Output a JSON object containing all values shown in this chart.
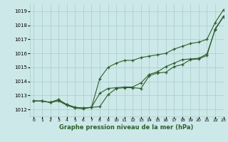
{
  "xlabel": "Graphe pression niveau de la mer (hPa)",
  "background_color": "#cce8e8",
  "grid_color": "#aacccc",
  "line_color": "#2d5e2d",
  "xlim": [
    -0.5,
    23
  ],
  "ylim": [
    1011.5,
    1019.5
  ],
  "yticks": [
    1012,
    1013,
    1014,
    1015,
    1016,
    1017,
    1018,
    1019
  ],
  "xticks": [
    0,
    1,
    2,
    3,
    4,
    5,
    6,
    7,
    8,
    9,
    10,
    11,
    12,
    13,
    14,
    15,
    16,
    17,
    18,
    19,
    20,
    21,
    22,
    23
  ],
  "series1": [
    1012.6,
    1012.6,
    1012.5,
    1012.6,
    1012.3,
    1012.1,
    1012.05,
    1012.15,
    1012.2,
    1013.05,
    1013.5,
    1013.55,
    1013.55,
    1013.5,
    1014.4,
    1014.6,
    1014.65,
    1015.05,
    1015.2,
    1015.55,
    1015.6,
    1015.85,
    1017.75,
    1018.65
  ],
  "series2": [
    1012.6,
    1012.6,
    1012.5,
    1012.7,
    1012.35,
    1012.15,
    1012.1,
    1012.15,
    1013.15,
    1013.5,
    1013.55,
    1013.6,
    1013.6,
    1013.9,
    1014.5,
    1014.68,
    1015.05,
    1015.3,
    1015.55,
    1015.6,
    1015.65,
    1015.95,
    1017.7,
    1018.6
  ],
  "series3": [
    1012.6,
    1012.6,
    1012.5,
    1012.7,
    1012.35,
    1012.15,
    1012.1,
    1012.15,
    1014.2,
    1015.0,
    1015.3,
    1015.5,
    1015.5,
    1015.7,
    1015.8,
    1015.9,
    1016.0,
    1016.3,
    1016.5,
    1016.7,
    1016.8,
    1017.0,
    1018.2,
    1019.1
  ]
}
